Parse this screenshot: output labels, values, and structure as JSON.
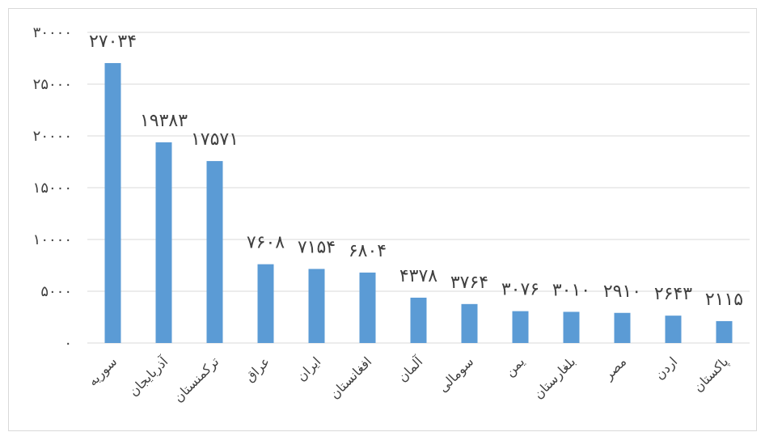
{
  "chart_data": {
    "type": "bar",
    "categories": [
      "سوریه",
      "آذربایجان",
      "ترکمنستان",
      "عراق",
      "ایران",
      "افغانستان",
      "آلمان",
      "سومالی",
      "یمن",
      "بلغارستان",
      "مصر",
      "اردن",
      "پاکستان"
    ],
    "values": [
      27034,
      19383,
      17571,
      7608,
      7154,
      6804,
      4378,
      3764,
      3076,
      3010,
      2910,
      2643,
      2115
    ],
    "data_labels": [
      "۲۷۰۳۴",
      "۱۹۳۸۳",
      "۱۷۵۷۱",
      "۷۶۰۸",
      "۷۱۵۴",
      "۶۸۰۴",
      "۴۳۷۸",
      "۳۷۶۴",
      "۳۰۷۶",
      "۳۰۱۰",
      "۲۹۱۰",
      "۲۶۴۳",
      "۲۱۱۵"
    ],
    "ylim": [
      0,
      30000
    ],
    "yticks": [
      0,
      5000,
      10000,
      15000,
      20000,
      25000,
      30000
    ],
    "ytick_labels": [
      "۰",
      "۵۰۰۰",
      "۱۰۰۰۰",
      "۱۵۰۰۰",
      "۲۰۰۰۰",
      "۲۵۰۰۰",
      "۳۰۰۰۰"
    ],
    "grid": true,
    "bar_color": "#5b9bd5",
    "grid_color": "#d9d9d9"
  }
}
